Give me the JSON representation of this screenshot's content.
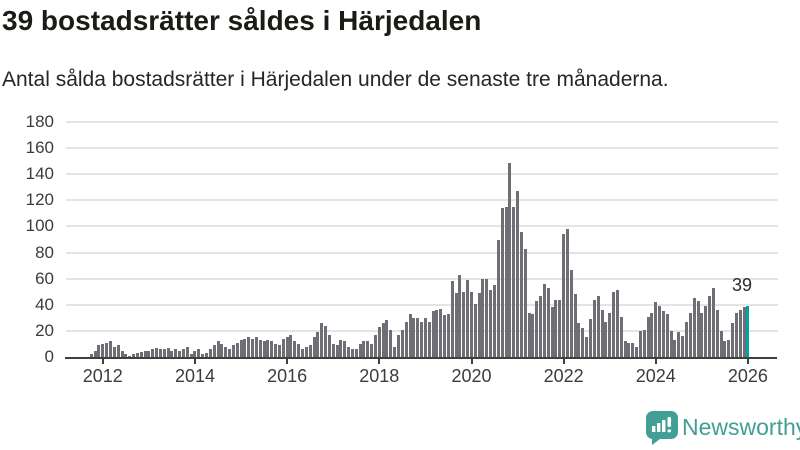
{
  "header": {
    "title": "39 bostadsrätter såldes i Härjedalen",
    "subtitle": "Antal sålda bostadsrätter i Härjedalen under de senaste tre månaderna."
  },
  "chart_data": {
    "type": "bar",
    "title": "39 bostadsrätter såldes i Härjedalen",
    "xlabel": "",
    "ylabel": "",
    "x_start": "2011-10",
    "x_end": "2026-01",
    "x_frequency": "monthly",
    "ylim": [
      0,
      180
    ],
    "grid": "horizontal",
    "y_ticks": [
      0,
      20,
      40,
      60,
      80,
      100,
      120,
      140,
      160,
      180
    ],
    "x_tick_labels": [
      "2012",
      "2014",
      "2016",
      "2018",
      "2020",
      "2022",
      "2024",
      "2026"
    ],
    "values": [
      2,
      5,
      9,
      10,
      11,
      12,
      8,
      9,
      5,
      2,
      1,
      2,
      3,
      4,
      5,
      5,
      6,
      7,
      6,
      6,
      7,
      5,
      6,
      5,
      6,
      8,
      2,
      5,
      6,
      2,
      3,
      6,
      9,
      12,
      10,
      8,
      6,
      9,
      11,
      13,
      14,
      15,
      14,
      15,
      13,
      12,
      13,
      12,
      10,
      9,
      14,
      15,
      17,
      12,
      10,
      6,
      8,
      9,
      15,
      19,
      26,
      24,
      17,
      10,
      9,
      13,
      12,
      8,
      6,
      6,
      10,
      12,
      12,
      10,
      17,
      23,
      26,
      28,
      21,
      8,
      17,
      21,
      27,
      33,
      30,
      30,
      27,
      30,
      27,
      35,
      36,
      37,
      32,
      33,
      58,
      49,
      63,
      50,
      59,
      50,
      41,
      49,
      60,
      60,
      51,
      55,
      90,
      114,
      115,
      149,
      115,
      127,
      96,
      83,
      34,
      33,
      43,
      47,
      56,
      53,
      38,
      44,
      44,
      94,
      98,
      67,
      48,
      26,
      22,
      15,
      29,
      44,
      47,
      36,
      27,
      34,
      50,
      51,
      31,
      12,
      11,
      11,
      8,
      20,
      21,
      31,
      34,
      42,
      39,
      35,
      33,
      20,
      13,
      19,
      16,
      27,
      34,
      45,
      43,
      34,
      39,
      47,
      53,
      36,
      20,
      12,
      13,
      26,
      34,
      36,
      38,
      39
    ],
    "highlight_last_bar": true,
    "annotation": "39",
    "colors": {
      "bar": "#6e6e74",
      "highlight": "#00a5a3",
      "grid": "#e4e4e4",
      "axis": "#3f3f3f"
    }
  },
  "footer": {
    "brand": "Newsworthy"
  }
}
